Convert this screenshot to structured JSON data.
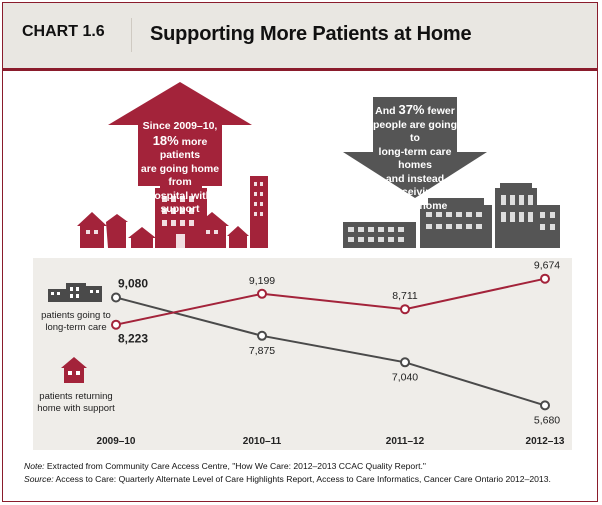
{
  "header": {
    "chart_label": "CHART 1.6",
    "title": "Supporting More Patients at Home"
  },
  "callout_up": {
    "line1": "Since 2009–10,",
    "highlight": "18%",
    "line2_rest": " more patients",
    "line3": "are going home from",
    "line4": "hospital with support"
  },
  "callout_down": {
    "line1": "And",
    "highlight": "37%",
    "line1_rest": " fewer",
    "line2": "people are going to",
    "line3": "long-term care homes",
    "line4": "and instead receiving",
    "line5": "care at home"
  },
  "legend": {
    "ltc_line1": "patients going to",
    "ltc_line2": "long-term care",
    "home_line1": "patients returning",
    "home_line2": "home with support",
    "ltc_icon": "building-icon",
    "home_icon": "house-icon"
  },
  "colors": {
    "ltc": "#4a4a4a",
    "home": "#a3233a",
    "brand": "#8a1c2c",
    "panel": "#efede9"
  },
  "chart_data": {
    "type": "line",
    "categories": [
      "2009–10",
      "2010–11",
      "2011–12",
      "2012–13"
    ],
    "series": [
      {
        "name": "patients going to long-term care",
        "values": [
          9080,
          7875,
          7040,
          5680
        ],
        "labels": [
          "9,080",
          "7,875",
          "7,040",
          "5,680"
        ]
      },
      {
        "name": "patients returning home with support",
        "values": [
          8223,
          9199,
          8711,
          9674
        ],
        "labels": [
          "8,223",
          "9,199",
          "8,711",
          "9,674"
        ]
      }
    ],
    "xlabel": "",
    "ylabel": "",
    "ylim": [
      5000,
      10200
    ],
    "grid": false
  },
  "notes": {
    "note_label": "Note:",
    "note_text": " Extracted from Community Care Access Centre, \"How We Care: 2012–2013 CCAC Quality Report.\"",
    "source_label": "Source:",
    "source_text": " Access to Care: Quarterly Alternate Level of Care Highlights Report, Access to Care Informatics, Cancer Care Ontario 2012–2013."
  }
}
